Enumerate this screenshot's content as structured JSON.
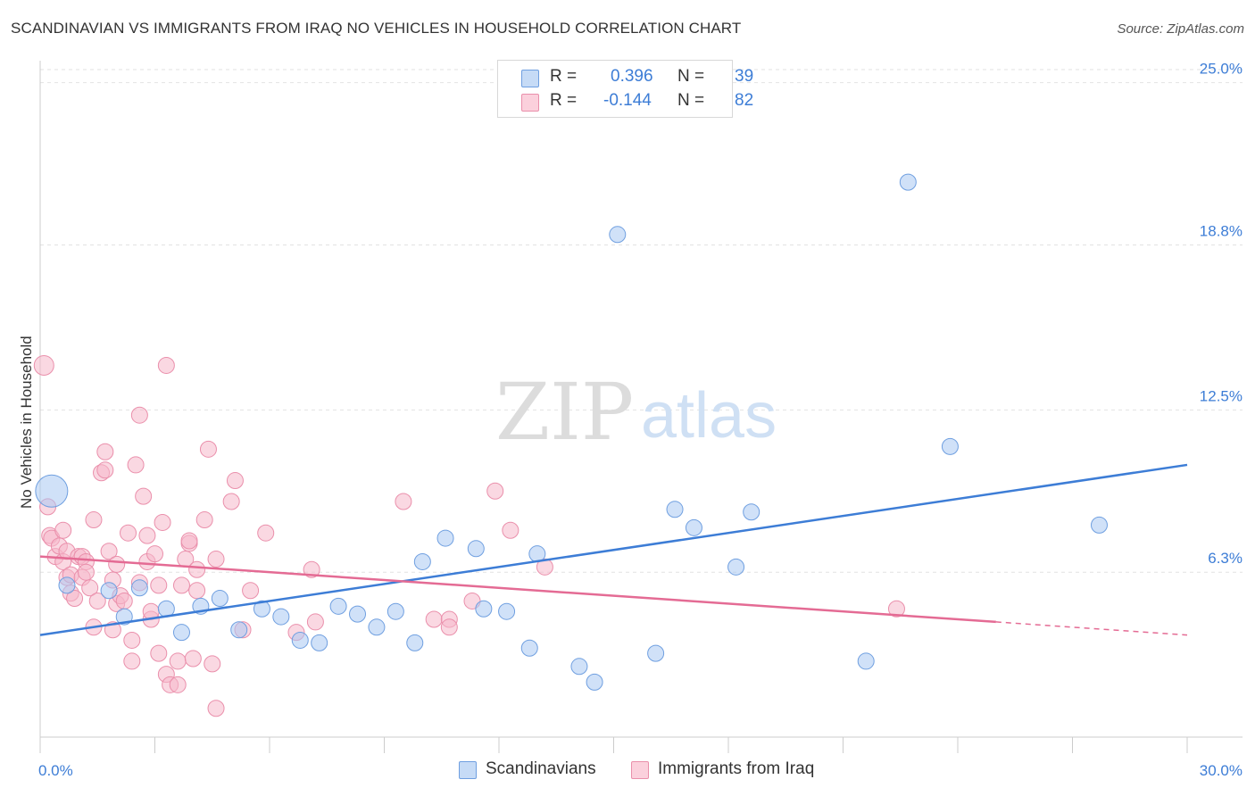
{
  "header": {
    "title": "SCANDINAVIAN VS IMMIGRANTS FROM IRAQ NO VEHICLES IN HOUSEHOLD CORRELATION CHART",
    "source": "Source: ZipAtlas.com"
  },
  "watermark": {
    "part1": "ZIP",
    "part2": "atlas"
  },
  "legend": {
    "rows": [
      {
        "r_label": "R =",
        "r_value": "0.396",
        "n_label": "N =",
        "n_value": "39",
        "color": "#a9c8f2"
      },
      {
        "r_label": "R =",
        "r_value": "-0.144",
        "n_label": "N =",
        "n_value": "82",
        "color": "#f6b8cb"
      }
    ]
  },
  "bottom_legend": {
    "items": [
      {
        "label": "Scandinavians",
        "color": "#a9c8f2"
      },
      {
        "label": "Immigrants from Iraq",
        "color": "#f6b8cb"
      }
    ]
  },
  "chart_data": {
    "type": "scatter",
    "title": "SCANDINAVIAN VS IMMIGRANTS FROM IRAQ NO VEHICLES IN HOUSEHOLD CORRELATION CHART",
    "xlabel": "",
    "ylabel": "No Vehicles in Household",
    "xlim": [
      0,
      30
    ],
    "ylim": [
      0,
      25.5
    ],
    "x_tick_labels": [
      "0.0%",
      "30.0%"
    ],
    "y_ticks": [
      6.3,
      12.5,
      18.8,
      25.0
    ],
    "y_tick_labels": [
      "6.3%",
      "12.5%",
      "18.8%",
      "25.0%"
    ],
    "grid": true,
    "legend_position": "top-center",
    "colors": {
      "blue": "#3d7dd6",
      "pink": "#e46b94",
      "blue_fill": "#a9c8f2",
      "pink_fill": "#f6b8cb"
    },
    "series": [
      {
        "name": "Scandinavians",
        "r": 0.396,
        "n": 39,
        "trend": {
          "x": [
            0,
            30
          ],
          "y": [
            3.9,
            10.4
          ]
        },
        "points": [
          [
            0.3,
            9.4,
            18
          ],
          [
            0.7,
            5.8,
            9
          ],
          [
            1.8,
            5.6,
            9
          ],
          [
            2.2,
            4.6,
            9
          ],
          [
            2.6,
            5.7,
            9
          ],
          [
            3.3,
            4.9,
            9
          ],
          [
            3.7,
            4.0,
            9
          ],
          [
            4.2,
            5.0,
            9
          ],
          [
            4.7,
            5.3,
            9
          ],
          [
            5.2,
            4.1,
            9
          ],
          [
            5.8,
            4.9,
            9
          ],
          [
            6.3,
            4.6,
            9
          ],
          [
            6.8,
            3.7,
            9
          ],
          [
            7.3,
            3.6,
            9
          ],
          [
            7.8,
            5.0,
            9
          ],
          [
            8.3,
            4.7,
            9
          ],
          [
            8.8,
            4.2,
            9
          ],
          [
            9.3,
            4.8,
            9
          ],
          [
            9.8,
            3.6,
            9
          ],
          [
            10.0,
            6.7,
            9
          ],
          [
            10.6,
            7.6,
            9
          ],
          [
            11.4,
            7.2,
            9
          ],
          [
            11.6,
            4.9,
            9
          ],
          [
            12.2,
            4.8,
            9
          ],
          [
            12.8,
            3.4,
            9
          ],
          [
            13.0,
            7.0,
            9
          ],
          [
            14.1,
            2.7,
            9
          ],
          [
            14.5,
            2.1,
            9
          ],
          [
            15.1,
            19.2,
            9
          ],
          [
            16.1,
            3.2,
            9
          ],
          [
            16.6,
            8.7,
            9
          ],
          [
            17.1,
            8.0,
            9
          ],
          [
            18.2,
            6.5,
            9
          ],
          [
            18.6,
            8.6,
            9
          ],
          [
            21.6,
            2.9,
            9
          ],
          [
            22.7,
            21.2,
            9
          ],
          [
            23.8,
            11.1,
            9
          ],
          [
            27.7,
            8.1,
            9
          ],
          [
            2.3,
            9.9,
            0
          ]
        ]
      },
      {
        "name": "Immigrants from Iraq",
        "r": -0.144,
        "n": 82,
        "trend": {
          "x": [
            0,
            25
          ],
          "y": [
            6.9,
            4.4
          ]
        },
        "trend_dashed": {
          "x": [
            25,
            30
          ],
          "y": [
            4.4,
            3.9
          ]
        },
        "points": [
          [
            0.1,
            14.2,
            11
          ],
          [
            0.2,
            8.8,
            9
          ],
          [
            0.25,
            7.7,
            9
          ],
          [
            0.3,
            7.6,
            9
          ],
          [
            0.4,
            6.9,
            9
          ],
          [
            0.5,
            7.3,
            9
          ],
          [
            0.6,
            6.7,
            9
          ],
          [
            0.6,
            7.9,
            9
          ],
          [
            0.7,
            6.1,
            9
          ],
          [
            0.7,
            7.1,
            9
          ],
          [
            0.8,
            6.2,
            9
          ],
          [
            0.8,
            5.5,
            9
          ],
          [
            0.9,
            5.3,
            9
          ],
          [
            1.0,
            6.9,
            9
          ],
          [
            1.1,
            6.1,
            9
          ],
          [
            1.1,
            6.9,
            9
          ],
          [
            1.2,
            6.7,
            9
          ],
          [
            1.2,
            6.3,
            9
          ],
          [
            1.3,
            5.7,
            9
          ],
          [
            1.4,
            4.2,
            9
          ],
          [
            1.4,
            8.3,
            9
          ],
          [
            1.5,
            5.2,
            9
          ],
          [
            1.6,
            10.1,
            9
          ],
          [
            1.7,
            10.2,
            9
          ],
          [
            1.7,
            10.9,
            9
          ],
          [
            1.8,
            7.1,
            9
          ],
          [
            1.9,
            6.0,
            9
          ],
          [
            1.9,
            4.1,
            9
          ],
          [
            2.0,
            6.6,
            9
          ],
          [
            2.0,
            5.1,
            9
          ],
          [
            2.1,
            5.4,
            9
          ],
          [
            2.2,
            5.2,
            9
          ],
          [
            2.3,
            7.8,
            9
          ],
          [
            2.4,
            3.7,
            9
          ],
          [
            2.4,
            2.9,
            9
          ],
          [
            2.5,
            10.4,
            9
          ],
          [
            2.6,
            12.3,
            9
          ],
          [
            2.6,
            5.9,
            9
          ],
          [
            2.7,
            9.2,
            9
          ],
          [
            2.8,
            7.7,
            9
          ],
          [
            2.8,
            6.7,
            9
          ],
          [
            2.9,
            4.5,
            9
          ],
          [
            2.9,
            4.8,
            9
          ],
          [
            3.0,
            7.0,
            9
          ],
          [
            3.1,
            5.8,
            9
          ],
          [
            3.1,
            3.2,
            9
          ],
          [
            3.2,
            8.2,
            9
          ],
          [
            3.3,
            2.4,
            9
          ],
          [
            3.3,
            14.2,
            9
          ],
          [
            3.4,
            2.0,
            9
          ],
          [
            3.6,
            2.0,
            9
          ],
          [
            3.6,
            2.9,
            9
          ],
          [
            3.7,
            5.8,
            9
          ],
          [
            3.8,
            6.8,
            9
          ],
          [
            3.9,
            7.4,
            9
          ],
          [
            3.9,
            7.5,
            9
          ],
          [
            4.0,
            3.0,
            9
          ],
          [
            4.1,
            5.6,
            9
          ],
          [
            4.1,
            6.4,
            9
          ],
          [
            4.3,
            8.3,
            9
          ],
          [
            4.4,
            11.0,
            9
          ],
          [
            4.5,
            2.8,
            9
          ],
          [
            4.6,
            6.8,
            9
          ],
          [
            4.6,
            1.1,
            9
          ],
          [
            5.0,
            9.0,
            9
          ],
          [
            5.1,
            9.8,
            9
          ],
          [
            5.3,
            4.1,
            9
          ],
          [
            5.5,
            5.6,
            9
          ],
          [
            5.9,
            7.8,
            9
          ],
          [
            6.7,
            4.0,
            9
          ],
          [
            7.1,
            6.4,
            9
          ],
          [
            7.2,
            4.4,
            9
          ],
          [
            9.5,
            9.0,
            9
          ],
          [
            10.3,
            4.5,
            9
          ],
          [
            10.7,
            4.5,
            9
          ],
          [
            10.7,
            4.2,
            9
          ],
          [
            11.3,
            5.2,
            9
          ],
          [
            11.9,
            9.4,
            9
          ],
          [
            12.3,
            7.9,
            9
          ],
          [
            13.2,
            6.5,
            9
          ],
          [
            22.4,
            4.9,
            9
          ],
          [
            6.0,
            3.5,
            0
          ]
        ]
      }
    ]
  }
}
